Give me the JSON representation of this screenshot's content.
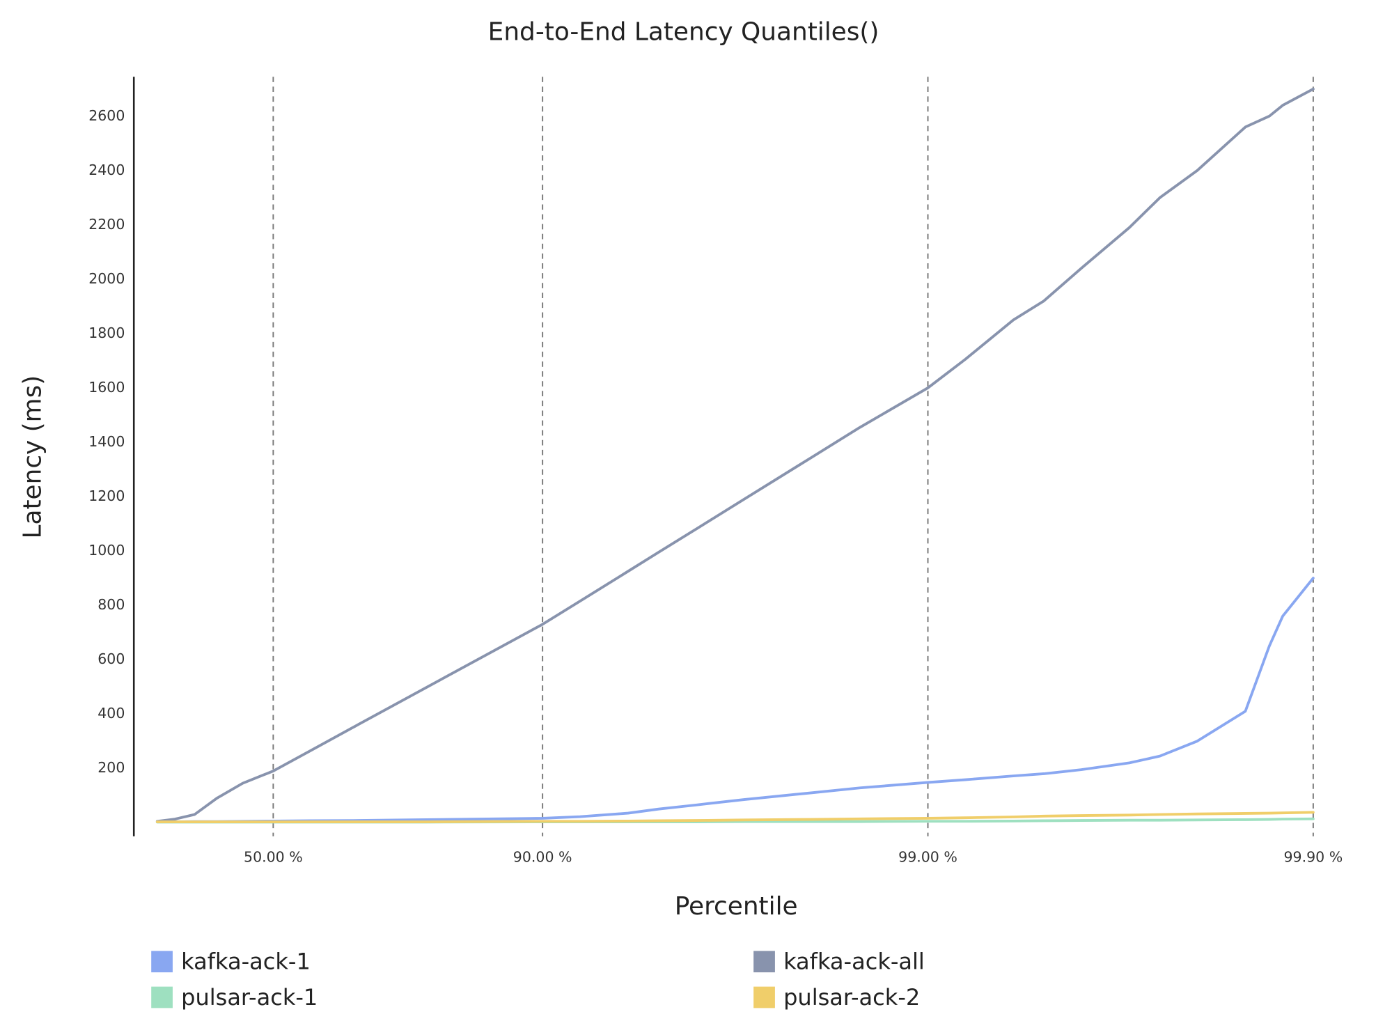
{
  "chart_data": {
    "type": "line",
    "title": "End-to-End Latency Quantiles()",
    "x_label": "Percentile",
    "y_label": "Latency (ms)",
    "xscale": "percentile-nines",
    "x": [
      0,
      10,
      20,
      30,
      40,
      50,
      60,
      70,
      80,
      90,
      92,
      94,
      95,
      96,
      97,
      98,
      98.5,
      99,
      99.2,
      99.4,
      99.5,
      99.6,
      99.7,
      99.75,
      99.8,
      99.85,
      99.87,
      99.88,
      99.9
    ],
    "series": [
      {
        "name": "kafka-ack-1",
        "color": "#89a7f1",
        "values": [
          3,
          3,
          4,
          4,
          5,
          6,
          7,
          8,
          11,
          16,
          22,
          35,
          50,
          65,
          85,
          110,
          128,
          148,
          158,
          172,
          180,
          195,
          220,
          245,
          300,
          410,
          650,
          760,
          900
        ]
      },
      {
        "name": "kafka-ack-all",
        "color": "#8893ad",
        "values": [
          5,
          13,
          30,
          90,
          145,
          190,
          265,
          362,
          498,
          730,
          815,
          925,
          995,
          1080,
          1190,
          1345,
          1455,
          1600,
          1705,
          1850,
          1920,
          2040,
          2190,
          2300,
          2400,
          2560,
          2600,
          2640,
          2700
        ]
      },
      {
        "name": "pulsar-ack-1",
        "color": "#9ee0c0",
        "values": [
          2,
          2,
          2,
          2,
          2,
          2,
          2,
          2,
          2,
          3,
          3,
          3,
          3,
          3,
          4,
          4,
          4,
          5,
          5,
          6,
          7,
          8,
          9,
          9,
          10,
          11,
          12,
          13,
          14
        ]
      },
      {
        "name": "pulsar-ack-2",
        "color": "#f0ce6a",
        "values": [
          3,
          3,
          3,
          3,
          3,
          3,
          3,
          3,
          3,
          5,
          5,
          6,
          7,
          8,
          10,
          12,
          14,
          16,
          18,
          21,
          24,
          26,
          28,
          30,
          32,
          34,
          35,
          36,
          38
        ]
      }
    ],
    "xlim": [
      -15,
      99.914
    ],
    "xticks": [
      {
        "value": 50,
        "label": "50.00 %"
      },
      {
        "value": 90,
        "label": "90.00 %"
      },
      {
        "value": 99,
        "label": "99.00 %"
      },
      {
        "value": 99.9,
        "label": "99.90 %"
      }
    ],
    "ylim": [
      -50,
      2745
    ],
    "yticks": [
      200,
      400,
      600,
      800,
      1000,
      1200,
      1400,
      1600,
      1800,
      2000,
      2200,
      2400,
      2600
    ],
    "grid": "x-dashed",
    "legend": "bottom"
  }
}
